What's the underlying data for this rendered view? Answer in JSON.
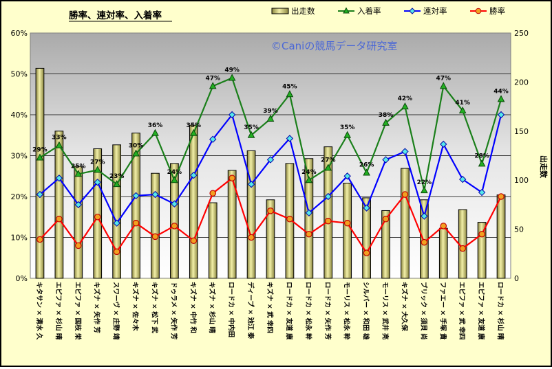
{
  "chart_data": {
    "type": "bar",
    "title": "勝率、連対率、入着率",
    "watermark": "©Caniの競馬データ研究室",
    "y2label": "出走数",
    "ylim": [
      0,
      60
    ],
    "y2lim": [
      0,
      250
    ],
    "yticks": [
      "0%",
      "10%",
      "20%",
      "30%",
      "40%",
      "50%",
      "60%"
    ],
    "y2ticks": [
      "0",
      "50",
      "100",
      "150",
      "200",
      "250"
    ],
    "grid": true,
    "legend_position": "top-right",
    "categories": [
      "キタサン × 清水 久",
      "エピファ × 杉山 晴",
      "エピファ × 国枝 栄",
      "キズナ × 矢作 芳",
      "スワーヴ × 庄野 靖",
      "キズナ × 佐々木",
      "キズナ × 松下 武",
      "ドゥラメ × 矢作 芳",
      "キズナ × 中竹 和",
      "キズナ × 杉山 晴",
      "ロードカ × 中内田",
      "ディープ × 池江 泰",
      "キズナ × 武 幸四",
      "ロードカ × 友道 康",
      "ロードカ × 松永 幹",
      "ロードカ × 矢作 芳",
      "モーリス × 松永 幹",
      "シルバー × 和田 雄",
      "モーリス × 武井 亮",
      "キズナ × 大久保",
      "ブリック × 須貝 尚",
      "ファエー × 手塚 貴",
      "エピファ × 武 幸四",
      "エピファ × 友道 康",
      "ロードカ × 杉山 晴"
    ],
    "series": [
      {
        "name": "出走数",
        "kind": "bar",
        "axis": "y2",
        "color": "#e0dc8c",
        "values": [
          214,
          150,
          114,
          132,
          136,
          148,
          107,
          117,
          156,
          77,
          110,
          130,
          80,
          117,
          122,
          134,
          97,
          82,
          69,
          112,
          80,
          51,
          70,
          57,
          85
        ]
      },
      {
        "name": "入着率",
        "kind": "line",
        "axis": "y",
        "color": "#1a7f1a",
        "marker": "triangle",
        "values": [
          29.5,
          32.5,
          25.5,
          26.5,
          23,
          30.5,
          35.5,
          24,
          35.5,
          47,
          49,
          35,
          39,
          45,
          24,
          27,
          35,
          25.8,
          38,
          42,
          21.5,
          47,
          41,
          28,
          43.8
        ],
        "labels": [
          "29%",
          "33%",
          "25%",
          "27%",
          "23%",
          "30%",
          "36%",
          "24%",
          "35%",
          "47%",
          "49%",
          "35%",
          "39%",
          "45%",
          "24%",
          "27%",
          "35%",
          "26%",
          "38%",
          "42%",
          "22%",
          "47%",
          "41%",
          "28%",
          "44%"
        ]
      },
      {
        "name": "連対率",
        "kind": "line",
        "axis": "y",
        "color": "#0000ff",
        "marker": "diamond",
        "values": [
          20.5,
          24.5,
          18,
          23.5,
          13.5,
          20.2,
          20.5,
          18.2,
          25.2,
          34,
          40,
          23,
          29,
          34.2,
          16,
          20,
          25,
          17.2,
          29,
          31,
          15.2,
          32.8,
          24.2,
          21,
          40
        ]
      },
      {
        "name": "勝率",
        "kind": "line",
        "axis": "y",
        "color": "#ff0000",
        "marker": "circle",
        "values": [
          9.5,
          14.5,
          8,
          15,
          6.5,
          13.5,
          10.2,
          12.8,
          9.2,
          20.8,
          24.5,
          10,
          16.5,
          14.5,
          10.8,
          14,
          13.5,
          6.2,
          14.5,
          20.5,
          8.8,
          12.8,
          7.3,
          10.8,
          20
        ]
      }
    ]
  }
}
